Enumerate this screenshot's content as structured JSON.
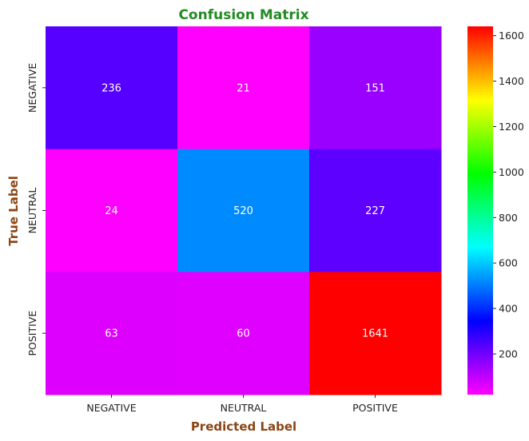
{
  "chart_data": {
    "type": "heatmap",
    "title": "Confusion Matrix",
    "xlabel": "Predicted Label",
    "ylabel": "True Label",
    "x_categories": [
      "NEGATIVE",
      "NEUTRAL",
      "POSITIVE"
    ],
    "y_categories": [
      "NEGATIVE",
      "NEUTRAL",
      "POSITIVE"
    ],
    "values": [
      [
        236,
        21,
        151
      ],
      [
        24,
        520,
        227
      ],
      [
        63,
        60,
        1641
      ]
    ],
    "colormap": "gist_rainbow_r",
    "value_range": [
      21,
      1641
    ],
    "colorbar_ticks": [
      "200",
      "400",
      "600",
      "800",
      "1000",
      "1200",
      "1400",
      "1600"
    ],
    "title_color": "#228b22",
    "axis_label_color": "#8b4513",
    "annotation_color": "#ffffff"
  }
}
